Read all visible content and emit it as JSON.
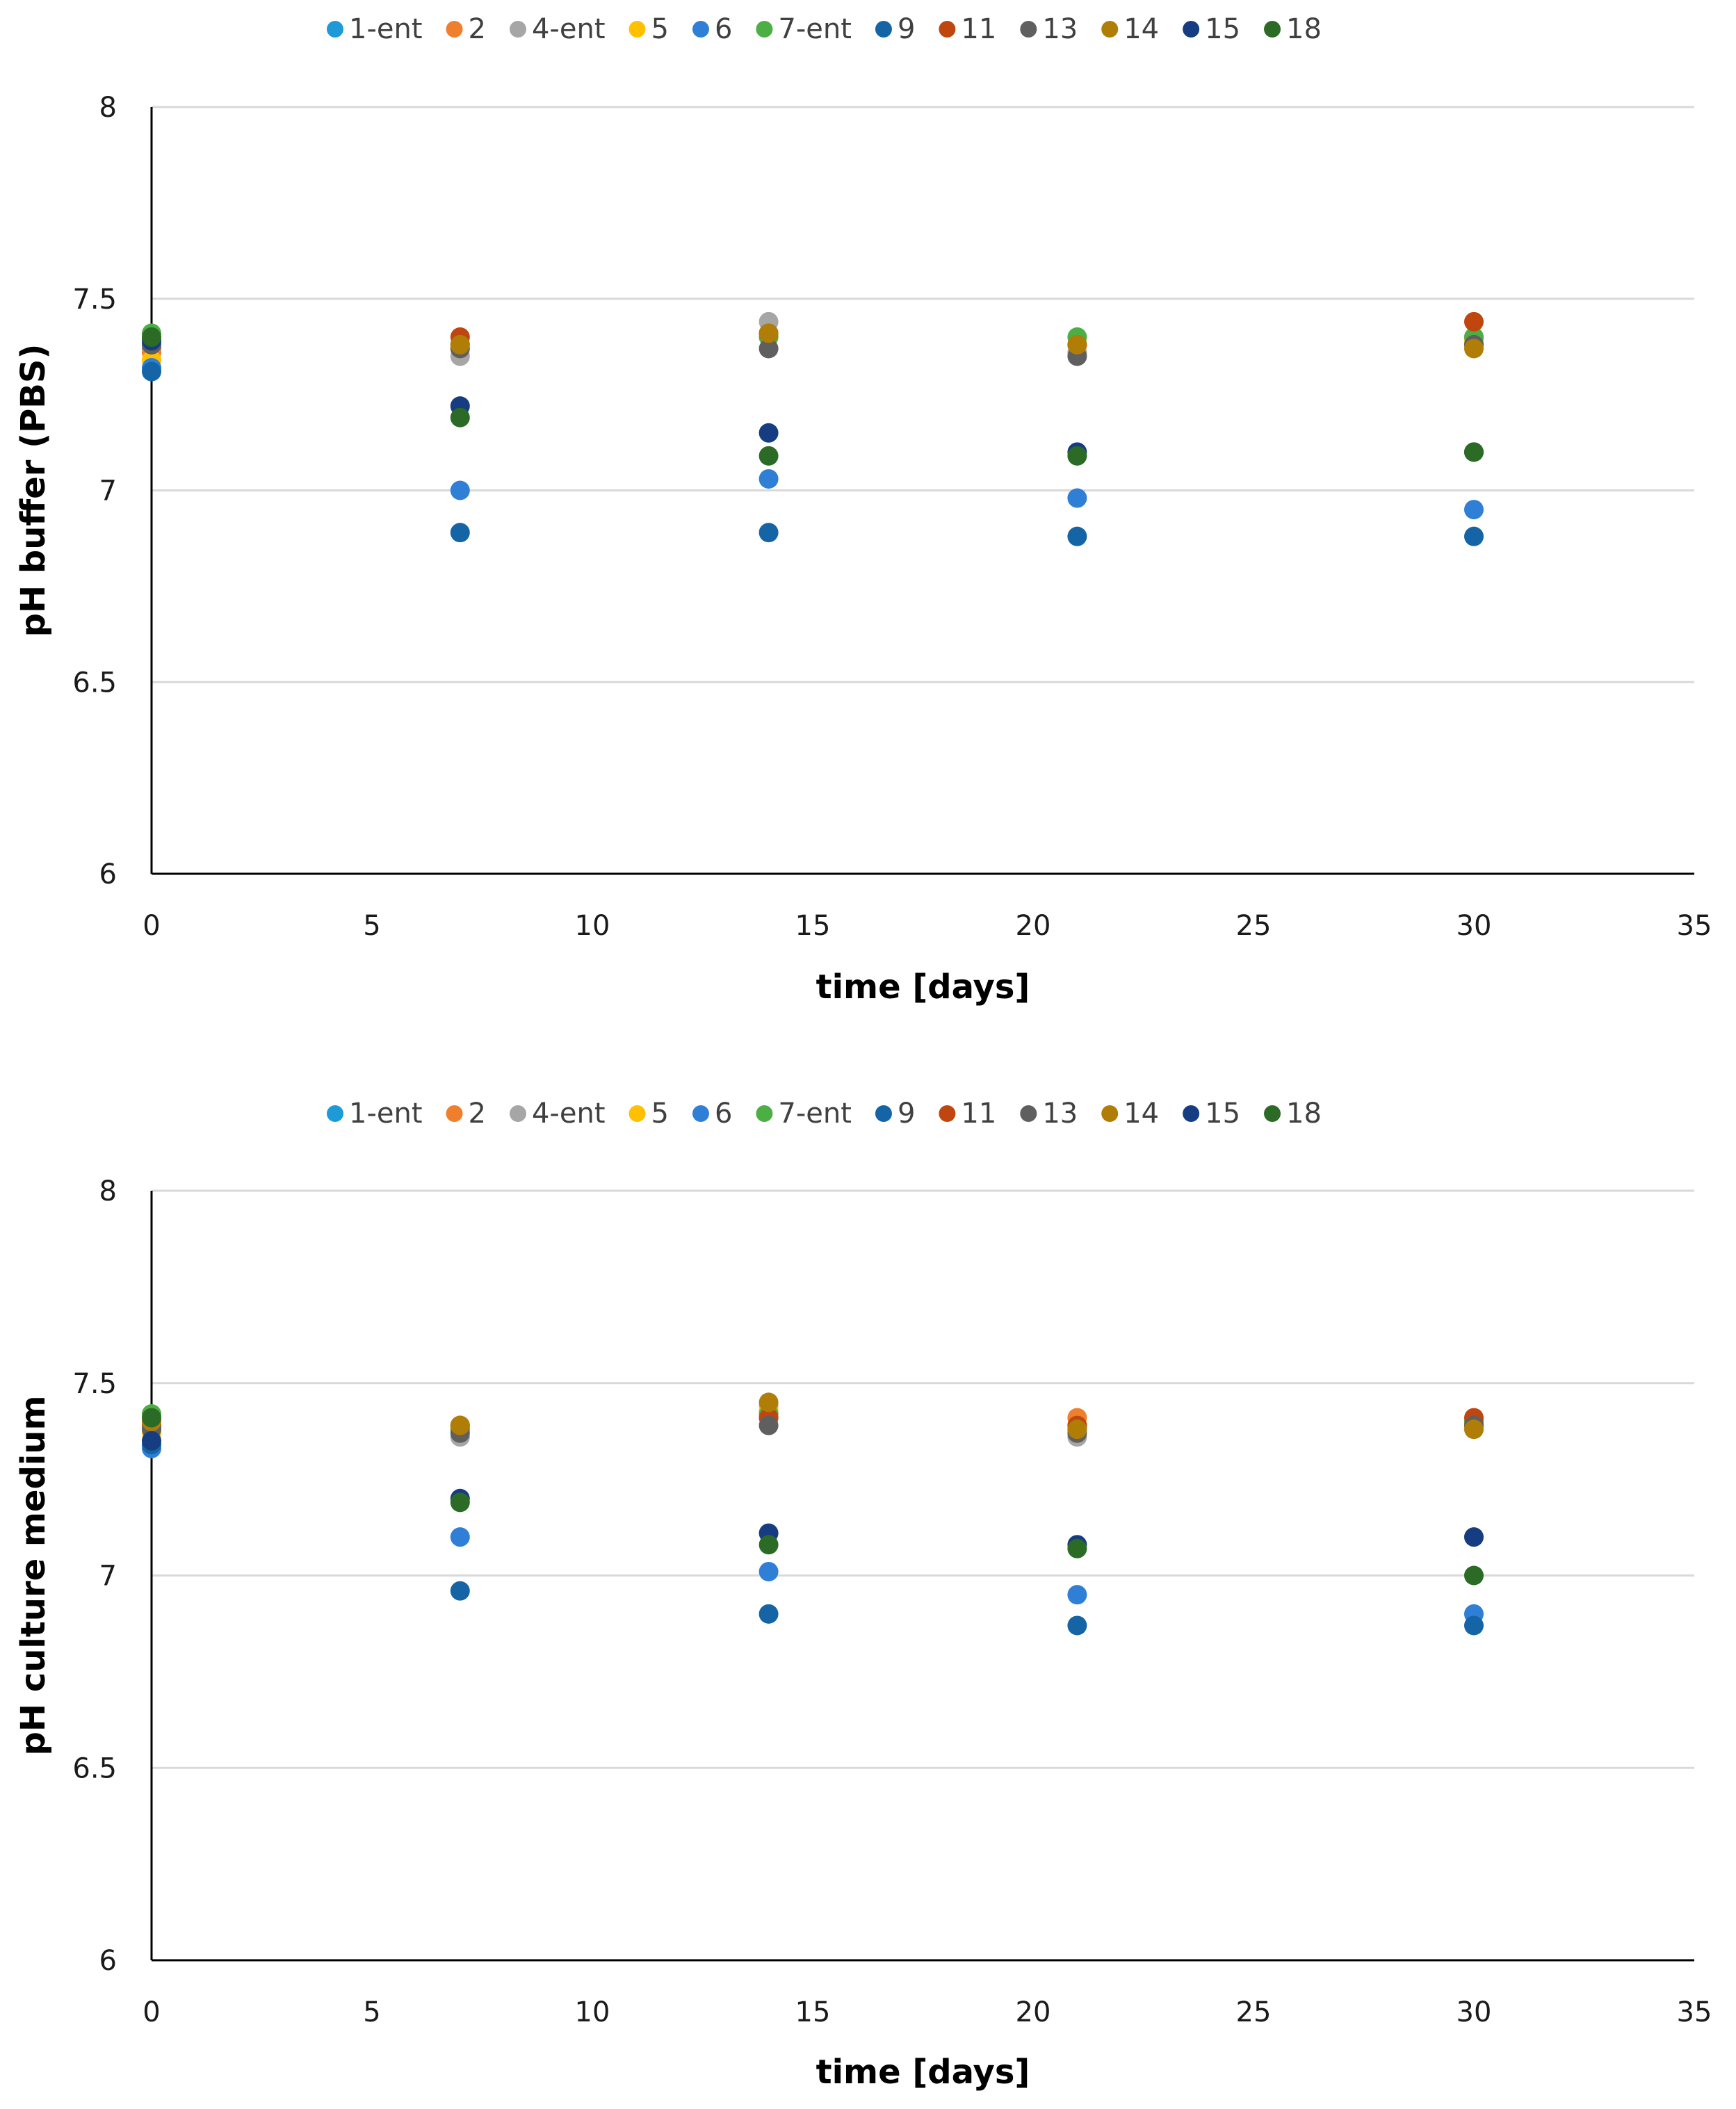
{
  "chart_data": [
    {
      "type": "scatter",
      "title": "",
      "xlabel": "time [days]",
      "ylabel": "pH buffer (PBS)",
      "xlim": [
        0,
        35
      ],
      "ylim": [
        6,
        8
      ],
      "xticks": [
        0,
        5,
        10,
        15,
        20,
        25,
        30,
        35
      ],
      "yticks": [
        6,
        6.5,
        7,
        7.5,
        8
      ],
      "xtick_labels": [
        "0",
        "5",
        "10",
        "15",
        "20",
        "25",
        "30",
        "35"
      ],
      "ytick_labels": [
        "6",
        "6.5",
        "7",
        "7.5",
        "8"
      ],
      "grid": "horizontal",
      "legend_position": "top",
      "x": [
        0,
        7,
        14,
        21,
        30
      ],
      "series": [
        {
          "name": "1-ent",
          "color": "#1f9ad8",
          "values": [
            7.37,
            7.38,
            7.4,
            7.38,
            7.38
          ]
        },
        {
          "name": "2",
          "color": "#f07f2d",
          "values": [
            7.36,
            7.38,
            7.41,
            7.38,
            7.4
          ]
        },
        {
          "name": "4-ent",
          "color": "#a6a6a6",
          "values": [
            7.39,
            7.35,
            7.44,
            7.36,
            7.39
          ]
        },
        {
          "name": "5",
          "color": "#ffc000",
          "values": [
            7.34,
            7.37,
            7.4,
            7.38,
            7.39
          ]
        },
        {
          "name": "6",
          "color": "#2f7fd6",
          "values": [
            7.32,
            7.0,
            7.03,
            6.98,
            6.95
          ]
        },
        {
          "name": "7-ent",
          "color": "#4caf45",
          "values": [
            7.41,
            7.38,
            7.4,
            7.4,
            7.4
          ]
        },
        {
          "name": "9",
          "color": "#1565a6",
          "values": [
            7.31,
            6.89,
            6.89,
            6.88,
            6.88
          ]
        },
        {
          "name": "11",
          "color": "#c0460f",
          "values": [
            7.38,
            7.4,
            7.41,
            7.38,
            7.44
          ]
        },
        {
          "name": "13",
          "color": "#5f5f5f",
          "values": [
            7.38,
            7.37,
            7.37,
            7.35,
            7.38
          ]
        },
        {
          "name": "14",
          "color": "#b07d07",
          "values": [
            7.39,
            7.38,
            7.41,
            7.38,
            7.37
          ]
        },
        {
          "name": "15",
          "color": "#163d82",
          "values": [
            7.39,
            7.22,
            7.15,
            7.1,
            7.1
          ]
        },
        {
          "name": "18",
          "color": "#2c6b25",
          "values": [
            7.4,
            7.19,
            7.09,
            7.09,
            7.1
          ]
        }
      ]
    },
    {
      "type": "scatter",
      "title": "",
      "xlabel": "time [days]",
      "ylabel": "pH culture medium",
      "xlim": [
        0,
        35
      ],
      "ylim": [
        6,
        8
      ],
      "xticks": [
        0,
        5,
        10,
        15,
        20,
        25,
        30,
        35
      ],
      "yticks": [
        6,
        6.5,
        7,
        7.5,
        8
      ],
      "xtick_labels": [
        "0",
        "5",
        "10",
        "15",
        "20",
        "25",
        "30",
        "35"
      ],
      "ytick_labels": [
        "6",
        "6.5",
        "7",
        "7.5",
        "8"
      ],
      "grid": "horizontal",
      "legend_position": "top",
      "x": [
        0,
        7,
        14,
        21,
        30
      ],
      "series": [
        {
          "name": "1-ent",
          "color": "#1f9ad8",
          "values": [
            7.38,
            7.38,
            7.41,
            7.38,
            7.39
          ]
        },
        {
          "name": "2",
          "color": "#f07f2d",
          "values": [
            7.39,
            7.39,
            7.42,
            7.41,
            7.4
          ]
        },
        {
          "name": "4-ent",
          "color": "#a6a6a6",
          "values": [
            7.4,
            7.36,
            7.44,
            7.36,
            7.39
          ]
        },
        {
          "name": "5",
          "color": "#ffc000",
          "values": [
            7.37,
            7.38,
            7.43,
            7.39,
            7.39
          ]
        },
        {
          "name": "6",
          "color": "#2f7fd6",
          "values": [
            7.33,
            7.1,
            7.01,
            6.95,
            6.9
          ]
        },
        {
          "name": "7-ent",
          "color": "#4caf45",
          "values": [
            7.42,
            7.38,
            7.42,
            7.39,
            7.4
          ]
        },
        {
          "name": "9",
          "color": "#1565a6",
          "values": [
            7.34,
            6.96,
            6.9,
            6.87,
            6.87
          ]
        },
        {
          "name": "11",
          "color": "#c0460f",
          "values": [
            7.39,
            7.39,
            7.41,
            7.39,
            7.41
          ]
        },
        {
          "name": "13",
          "color": "#5f5f5f",
          "values": [
            7.38,
            7.37,
            7.39,
            7.37,
            7.39
          ]
        },
        {
          "name": "14",
          "color": "#b07d07",
          "values": [
            7.4,
            7.39,
            7.45,
            7.38,
            7.38
          ]
        },
        {
          "name": "15",
          "color": "#163d82",
          "values": [
            7.35,
            7.2,
            7.11,
            7.08,
            7.1
          ]
        },
        {
          "name": "18",
          "color": "#2c6b25",
          "values": [
            7.41,
            7.19,
            7.08,
            7.07,
            7.0
          ]
        }
      ]
    }
  ]
}
